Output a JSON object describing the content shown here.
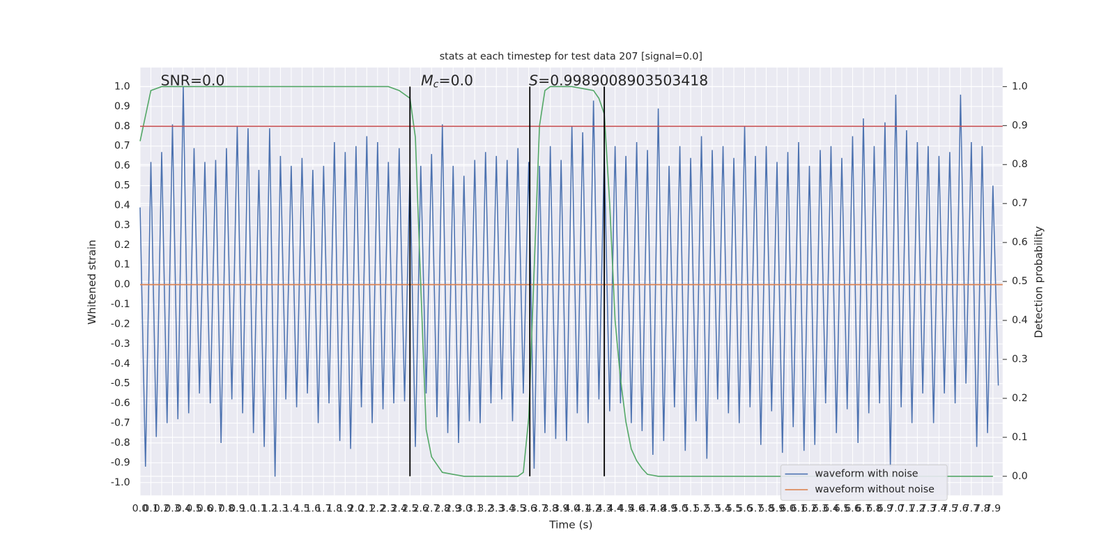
{
  "chart_data": {
    "type": "line",
    "title": "stats at each timestep for test data 207 [signal=0.0]",
    "xlabel": "Time (s)",
    "ylabel": "Whitened strain",
    "y2label": "Detection probability",
    "annotations": {
      "snr": "SNR=0.0",
      "mc_symbol": "M",
      "mc_subscript": "c",
      "mc_text": "=0.0",
      "s_symbol": "S",
      "s_text": "=0.9989008903503418"
    },
    "xlim": [
      0,
      7.99
    ],
    "ylim": [
      -1.065,
      1.097
    ],
    "y2lim": [
      -0.049,
      1.049
    ],
    "xticks": [
      {
        "value": 0,
        "label": "0.0"
      },
      0.1,
      0.2,
      0.3,
      0.4,
      0.5,
      0.6,
      0.7,
      0.8,
      0.9,
      {
        "value": 1,
        "label": "1.0"
      },
      1.1,
      1.2,
      1.3,
      1.4,
      1.5,
      1.6,
      1.7,
      1.8,
      1.9,
      {
        "value": 2,
        "label": "2.0"
      },
      2.1,
      2.2,
      2.3,
      2.4,
      2.5,
      2.6,
      2.7,
      2.8,
      2.9,
      {
        "value": 3,
        "label": "3.0"
      },
      3.1,
      3.2,
      3.3,
      3.4,
      3.5,
      3.6,
      3.7,
      3.8,
      3.9,
      {
        "value": 4,
        "label": "4.0"
      },
      4.1,
      4.2,
      4.3,
      4.4,
      4.5,
      4.6,
      4.7,
      4.8,
      4.9,
      {
        "value": 5,
        "label": "5.0"
      },
      5.1,
      5.2,
      5.3,
      5.4,
      5.5,
      5.6,
      5.7,
      5.8,
      5.9,
      {
        "value": 6,
        "label": "6.0"
      },
      6.1,
      6.2,
      6.3,
      6.4,
      6.5,
      6.6,
      6.7,
      6.8,
      6.9,
      {
        "value": 7,
        "label": "7.0"
      },
      7.1,
      7.2,
      7.3,
      7.4,
      7.5,
      7.6,
      7.7,
      7.8,
      7.9
    ],
    "yticks": [
      {
        "value": -1,
        "label": "-1.0"
      },
      -0.9,
      -0.8,
      -0.7,
      -0.6,
      -0.5,
      -0.4,
      -0.3,
      -0.2,
      -0.1,
      {
        "value": 0,
        "label": "0.0"
      },
      0.1,
      0.2,
      0.3,
      0.4,
      0.5,
      0.6,
      0.7,
      0.8,
      0.9,
      {
        "value": 1,
        "label": "1.0"
      }
    ],
    "y2ticks": [
      {
        "value": 0,
        "label": "0.0"
      },
      0.1,
      0.2,
      0.3,
      0.4,
      0.5,
      0.6,
      0.7,
      0.8,
      0.9,
      {
        "value": 1,
        "label": "1.0"
      }
    ],
    "grid": true,
    "legend": "lower right",
    "hlines": [
      {
        "value": 0.8,
        "color": "#c44e52"
      }
    ],
    "vlines": {
      "x": [
        2.5,
        3.61,
        4.3
      ],
      "span": [
        0,
        1
      ],
      "axis": "y2",
      "color": "#000000"
    },
    "series": [
      {
        "name": "waveform with noise",
        "color": "#4c72b0",
        "x": [
          0,
          0.05,
          0.1,
          0.15,
          0.2,
          0.25,
          0.3,
          0.35,
          0.4,
          0.45,
          0.5,
          0.55,
          0.6,
          0.65,
          0.7,
          0.75,
          0.8,
          0.85,
          0.9,
          0.95,
          1,
          1.05,
          1.1,
          1.15,
          1.2,
          1.25,
          1.3,
          1.35,
          1.4,
          1.45,
          1.5,
          1.55,
          1.6,
          1.65,
          1.7,
          1.75,
          1.8,
          1.85,
          1.9,
          1.95,
          2,
          2.05,
          2.1,
          2.15,
          2.2,
          2.25,
          2.3,
          2.35,
          2.4,
          2.45,
          2.5,
          2.55,
          2.6,
          2.65,
          2.7,
          2.75,
          2.8,
          2.85,
          2.9,
          2.95,
          3,
          3.05,
          3.1,
          3.15,
          3.2,
          3.25,
          3.3,
          3.35,
          3.4,
          3.45,
          3.5,
          3.55,
          3.6,
          3.65,
          3.7,
          3.75,
          3.8,
          3.85,
          3.9,
          3.95,
          4,
          4.05,
          4.1,
          4.15,
          4.2,
          4.25,
          4.3,
          4.35,
          4.4,
          4.45,
          4.5,
          4.55,
          4.6,
          4.65,
          4.7,
          4.75,
          4.8,
          4.85,
          4.9,
          4.95,
          5,
          5.05,
          5.1,
          5.15,
          5.2,
          5.25,
          5.3,
          5.35,
          5.4,
          5.45,
          5.5,
          5.55,
          5.6,
          5.65,
          5.7,
          5.75,
          5.8,
          5.85,
          5.9,
          5.95,
          6,
          6.05,
          6.1,
          6.15,
          6.2,
          6.25,
          6.3,
          6.35,
          6.4,
          6.45,
          6.5,
          6.55,
          6.6,
          6.65,
          6.7,
          6.75,
          6.8,
          6.85,
          6.9,
          6.95,
          7,
          7.05,
          7.1,
          7.15,
          7.2,
          7.25,
          7.3,
          7.35,
          7.4,
          7.45,
          7.5,
          7.55,
          7.6,
          7.65,
          7.7,
          7.75,
          7.8,
          7.85,
          7.9,
          7.95
        ],
        "values": [
          0.39,
          -0.92,
          0.62,
          -0.77,
          0.67,
          -0.7,
          0.81,
          -0.68,
          1.0,
          -0.65,
          0.69,
          -0.55,
          0.62,
          -0.6,
          0.63,
          -0.8,
          0.69,
          -0.58,
          0.8,
          -0.65,
          0.79,
          -0.75,
          0.58,
          -0.82,
          0.79,
          -0.97,
          0.65,
          -0.58,
          0.6,
          -0.62,
          0.64,
          -0.55,
          0.58,
          -0.7,
          0.6,
          -0.6,
          0.72,
          -0.79,
          0.67,
          -0.83,
          0.7,
          -0.62,
          0.75,
          -0.7,
          0.72,
          -0.63,
          0.62,
          -0.6,
          0.69,
          -0.59,
          0.58,
          -0.82,
          0.6,
          -0.55,
          0.66,
          -0.67,
          0.81,
          -0.75,
          0.6,
          -0.8,
          0.55,
          -0.69,
          0.63,
          -0.7,
          0.67,
          -0.6,
          0.65,
          -0.58,
          0.63,
          -0.69,
          0.69,
          -0.55,
          0.62,
          -0.93,
          0.6,
          -0.75,
          0.7,
          -0.78,
          0.63,
          -0.79,
          0.8,
          -0.65,
          0.77,
          -0.7,
          0.93,
          -0.58,
          0.66,
          -0.64,
          0.7,
          -0.6,
          0.65,
          -0.7,
          0.72,
          -0.74,
          0.68,
          -0.86,
          0.89,
          -0.79,
          0.6,
          -0.62,
          0.7,
          -0.84,
          0.64,
          -0.69,
          0.75,
          -0.88,
          0.68,
          -0.58,
          0.7,
          -0.65,
          0.64,
          -0.7,
          0.8,
          -0.62,
          0.65,
          -0.81,
          0.7,
          -0.64,
          0.62,
          -0.85,
          0.67,
          -0.72,
          0.72,
          -0.84,
          0.6,
          -0.81,
          0.68,
          -0.6,
          0.7,
          -0.75,
          0.64,
          -0.63,
          0.75,
          -0.8,
          0.84,
          -0.65,
          0.7,
          -0.6,
          0.82,
          -0.92,
          0.96,
          -0.62,
          0.78,
          -0.7,
          0.72,
          -0.55,
          0.7,
          -0.7,
          0.65,
          -0.55,
          0.67,
          -0.6,
          0.96,
          -0.5,
          0.72,
          -0.82,
          0.7,
          -0.75,
          0.5,
          -0.51
        ]
      },
      {
        "name": "waveform without noise",
        "color": "#dd8452",
        "x": [
          0,
          7.99
        ],
        "values": [
          0,
          0
        ]
      },
      {
        "color": "#55a868",
        "axis": "y2",
        "x": [
          0,
          0.1,
          0.2,
          0.5,
          1,
          1.5,
          2,
          2.3,
          2.4,
          2.5,
          2.55,
          2.6,
          2.65,
          2.7,
          2.75,
          2.8,
          2.9,
          3,
          3.2,
          3.4,
          3.5,
          3.55,
          3.6,
          3.65,
          3.7,
          3.75,
          3.8,
          4,
          4.2,
          4.25,
          4.3,
          4.35,
          4.4,
          4.45,
          4.5,
          4.55,
          4.6,
          4.65,
          4.7,
          4.8,
          5,
          6,
          7,
          7.9
        ],
        "values": [
          0.86,
          0.99,
          1,
          1,
          1,
          1,
          1,
          1,
          0.99,
          0.97,
          0.87,
          0.49,
          0.12,
          0.05,
          0.03,
          0.01,
          0.005,
          0,
          0,
          0,
          0,
          0.01,
          0.15,
          0.53,
          0.9,
          0.99,
          1,
          1,
          0.99,
          0.97,
          0.93,
          0.7,
          0.4,
          0.25,
          0.14,
          0.07,
          0.04,
          0.02,
          0.005,
          0,
          0,
          0,
          0,
          0
        ]
      }
    ]
  }
}
